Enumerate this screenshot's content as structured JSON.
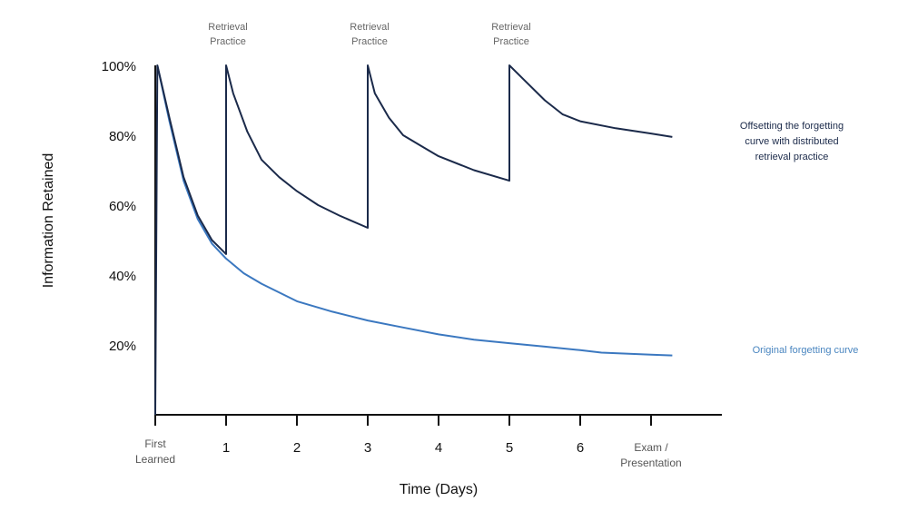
{
  "chart_data": {
    "type": "line",
    "xlabel": "Time (Days)",
    "ylabel": "Information Retained",
    "xlim": [
      0,
      8
    ],
    "ylim": [
      0,
      100
    ],
    "grid": false,
    "x_ticks": [
      {
        "x": 0,
        "label": "First Learned"
      },
      {
        "x": 1,
        "label": "1"
      },
      {
        "x": 2,
        "label": "2"
      },
      {
        "x": 3,
        "label": "3"
      },
      {
        "x": 4,
        "label": "4"
      },
      {
        "x": 5,
        "label": "5"
      },
      {
        "x": 6,
        "label": "6"
      },
      {
        "x": 7,
        "label": "Exam / Presentation"
      }
    ],
    "y_ticks": [
      {
        "y": 20,
        "label": "20%"
      },
      {
        "y": 40,
        "label": "40%"
      },
      {
        "y": 60,
        "label": "60%"
      },
      {
        "y": 80,
        "label": "80%"
      },
      {
        "y": 100,
        "label": "100%"
      }
    ],
    "annotations": [
      {
        "x": 1,
        "text": "Retrieval Practice"
      },
      {
        "x": 3,
        "text": "Retrieval Practice"
      },
      {
        "x": 5,
        "text": "Retrieval Practice"
      }
    ],
    "series": [
      {
        "name": "Offsetting the forgetting curve with distributed retrieval practice",
        "color": "#1b2a4a",
        "points": [
          [
            0,
            0
          ],
          [
            0.03,
            100
          ],
          [
            0.2,
            85
          ],
          [
            0.4,
            68
          ],
          [
            0.6,
            57
          ],
          [
            0.8,
            50
          ],
          [
            1,
            46
          ],
          [
            1,
            100
          ],
          [
            1.1,
            92
          ],
          [
            1.3,
            81
          ],
          [
            1.5,
            73
          ],
          [
            1.75,
            68
          ],
          [
            2,
            64
          ],
          [
            2.3,
            60
          ],
          [
            2.6,
            57
          ],
          [
            3,
            53.5
          ],
          [
            3,
            100
          ],
          [
            3.1,
            92
          ],
          [
            3.3,
            85
          ],
          [
            3.5,
            80
          ],
          [
            3.75,
            77
          ],
          [
            4,
            74
          ],
          [
            4.5,
            70
          ],
          [
            5,
            67
          ],
          [
            5,
            100
          ],
          [
            5.2,
            96
          ],
          [
            5.5,
            90
          ],
          [
            5.75,
            86
          ],
          [
            6,
            84
          ],
          [
            6.5,
            82
          ],
          [
            7,
            80.5
          ],
          [
            7.3,
            79.5
          ]
        ]
      },
      {
        "name": "Original forgetting curve",
        "color": "#3b78c0",
        "points": [
          [
            0.03,
            100
          ],
          [
            0.2,
            84
          ],
          [
            0.4,
            67
          ],
          [
            0.6,
            56
          ],
          [
            0.8,
            49
          ],
          [
            1,
            44.7
          ],
          [
            1.25,
            40.5
          ],
          [
            1.5,
            37.5
          ],
          [
            2,
            32.5
          ],
          [
            2.5,
            29.5
          ],
          [
            3,
            27
          ],
          [
            3.5,
            25
          ],
          [
            4,
            23
          ],
          [
            4.5,
            21.5
          ],
          [
            5,
            20.5
          ],
          [
            5.5,
            19.5
          ],
          [
            6,
            18.5
          ],
          [
            6.3,
            17.8
          ],
          [
            7,
            17.2
          ],
          [
            7.3,
            17
          ]
        ]
      }
    ]
  }
}
